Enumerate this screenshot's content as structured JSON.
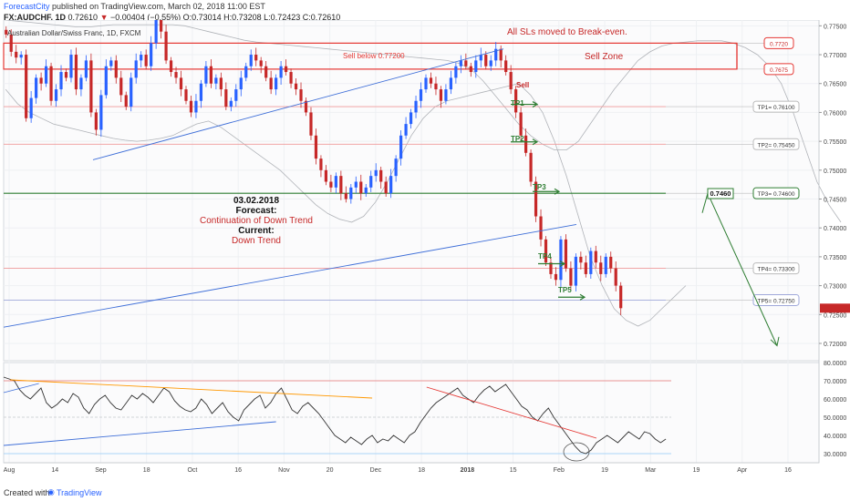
{
  "header": {
    "publisher": "ForecastCity",
    "published_text": "published on TradingView.com, March 02, 2018 11:00 EST",
    "symbol": "FX:AUDCHF, 1D",
    "last": "0.72610",
    "change": "−0.00404 (−0.55%)",
    "ohlc": "O:0.73014 H:0.73208 L:0.72423 C:0.72610",
    "instrument": "Australian Dollar/Swiss Franc, 1D, FXCM"
  },
  "footer": {
    "created_with": "Created with",
    "brand": "TradingView"
  },
  "annotations": {
    "sl_note": "All SLs moved to Break-even.",
    "sell_below": "Sell below 0.77200",
    "sell_zone": "Sell Zone",
    "sell": "Sell",
    "forecast_date": "03.02.2018",
    "forecast_label": "Forecast:",
    "forecast_value": "Continuation of Down Trend",
    "current_label": "Current:",
    "current_value": "Down Trend",
    "tp_arrows": [
      "TP1",
      "TP2",
      "TP3",
      "TP4",
      "TP5"
    ],
    "marker_7460": "0.7460"
  },
  "chart_data": [
    {
      "type": "candlestick",
      "ylim": [
        0.717,
        0.776
      ],
      "yticks": [
        "0.77500",
        "0.77000",
        "0.76500",
        "0.76000",
        "0.75500",
        "0.75000",
        "0.74500",
        "0.74000",
        "0.73500",
        "0.73000",
        "0.72500",
        "0.72000"
      ],
      "xticks": [
        "Aug",
        "14",
        "Sep",
        "18",
        "Oct",
        "16",
        "Nov",
        "20",
        "Dec",
        "18",
        "2018",
        "15",
        "Feb",
        "19",
        "Mar",
        "19",
        "Apr",
        "16"
      ],
      "levels": [
        {
          "label": "0.7720",
          "value": 0.772,
          "color": "#e53935"
        },
        {
          "label": "0.7675",
          "value": 0.7675,
          "color": "#e53935"
        },
        {
          "label": "TP1= 0.76100",
          "value": 0.761,
          "color": "#ef9a9a"
        },
        {
          "label": "TP2= 0.75450",
          "value": 0.7545,
          "color": "#ef9a9a"
        },
        {
          "label": "TP3= 0.74600",
          "value": 0.746,
          "color": "#2e7d32"
        },
        {
          "label": "TP4= 0.73300",
          "value": 0.733,
          "color": "#ef9a9a"
        },
        {
          "label": "TP5= 0.72750",
          "value": 0.7275,
          "color": "#9fa8da"
        }
      ],
      "up_color": "#2962ff",
      "down_color": "#c62828",
      "price_series": [
        0.7735,
        0.7705,
        0.7695,
        0.77,
        0.759,
        0.7625,
        0.766,
        0.765,
        0.768,
        0.762,
        0.764,
        0.767,
        0.766,
        0.77,
        0.764,
        0.766,
        0.769,
        0.76,
        0.757,
        0.763,
        0.768,
        0.769,
        0.766,
        0.763,
        0.761,
        0.766,
        0.769,
        0.77,
        0.768,
        0.772,
        0.776,
        0.774,
        0.769,
        0.767,
        0.766,
        0.764,
        0.762,
        0.76,
        0.762,
        0.765,
        0.768,
        0.765,
        0.766,
        0.764,
        0.761,
        0.762,
        0.764,
        0.766,
        0.768,
        0.77,
        0.769,
        0.768,
        0.766,
        0.764,
        0.766,
        0.768,
        0.767,
        0.765,
        0.764,
        0.762,
        0.76,
        0.756,
        0.752,
        0.75,
        0.748,
        0.747,
        0.749,
        0.746,
        0.745,
        0.747,
        0.748,
        0.746,
        0.747,
        0.749,
        0.75,
        0.748,
        0.746,
        0.749,
        0.752,
        0.756,
        0.758,
        0.76,
        0.762,
        0.764,
        0.766,
        0.765,
        0.764,
        0.762,
        0.764,
        0.766,
        0.768,
        0.769,
        0.768,
        0.767,
        0.769,
        0.77,
        0.768,
        0.769,
        0.771,
        0.769,
        0.767,
        0.764,
        0.76,
        0.756,
        0.753,
        0.748,
        0.742,
        0.738,
        0.734,
        0.732,
        0.731,
        0.738,
        0.733,
        0.73,
        0.735,
        0.734,
        0.732,
        0.736,
        0.734,
        0.732,
        0.735,
        0.733,
        0.73,
        0.7261
      ],
      "bollinger_upper": [
        0.776,
        0.7758,
        0.7756,
        0.7754,
        0.7752,
        0.775,
        0.7748,
        0.7748,
        0.775,
        0.7752,
        0.7752,
        0.7752,
        0.7752,
        0.7752,
        0.7752,
        0.775,
        0.7745,
        0.774,
        0.7735,
        0.773,
        0.7725,
        0.7722,
        0.772,
        0.7718,
        0.7716,
        0.7714,
        0.7712,
        0.771,
        0.7708,
        0.7706,
        0.7704,
        0.7702,
        0.77,
        0.7698,
        0.7696,
        0.7694,
        0.7692,
        0.769,
        0.7685,
        0.7675,
        0.7655,
        0.763,
        0.7605,
        0.758,
        0.756,
        0.7545,
        0.7535,
        0.7535,
        0.755,
        0.758,
        0.761,
        0.764,
        0.7665,
        0.769,
        0.7705,
        0.7715,
        0.772,
        0.7722,
        0.7724,
        0.7724,
        0.7724,
        0.772,
        0.7712,
        0.77,
        0.768,
        0.765,
        0.76,
        0.754,
        0.748,
        0.744,
        0.741
      ],
      "bollinger_lower": [
        0.764,
        0.7615,
        0.76,
        0.759,
        0.758,
        0.7575,
        0.757,
        0.7565,
        0.756,
        0.7555,
        0.7552,
        0.755,
        0.7552,
        0.7555,
        0.756,
        0.757,
        0.758,
        0.7585,
        0.7575,
        0.756,
        0.7545,
        0.753,
        0.7515,
        0.75,
        0.748,
        0.746,
        0.744,
        0.7425,
        0.7415,
        0.741,
        0.742,
        0.7445,
        0.748,
        0.752,
        0.756,
        0.759,
        0.761,
        0.762,
        0.7625,
        0.763,
        0.7635,
        0.764,
        0.7645,
        0.765,
        0.763,
        0.76,
        0.755,
        0.749,
        0.742,
        0.735,
        0.73,
        0.726,
        0.724,
        0.723,
        0.724,
        0.726,
        0.728,
        0.73
      ],
      "trendlines": [
        {
          "color": "#3f6fd8",
          "points": [
            [
              0.756,
              0.7525
            ],
            [
              0.7719,
              0.771
            ]
          ]
        },
        {
          "color": "#3f6fd8",
          "points": [
            [
              0.7229,
              0.7387
            ],
            [
              0.7396,
              0.7411
            ]
          ]
        },
        {
          "color": "#2e7d32",
          "points": [
            [
              0.744,
              0.7463
            ],
            [
              0.7452,
              0.7196
            ]
          ]
        }
      ]
    },
    {
      "type": "line",
      "name": "RSI",
      "ylim": [
        25,
        80
      ],
      "yticks": [
        "80.0000",
        "70.0000",
        "60.0000",
        "50.0000",
        "40.0000",
        "30.0000"
      ],
      "levels": [
        70,
        50,
        30
      ],
      "values": [
        72,
        71,
        70,
        65,
        62,
        60,
        63,
        66,
        58,
        55,
        57,
        60,
        58,
        63,
        61,
        55,
        52,
        57,
        60,
        62,
        58,
        55,
        54,
        58,
        62,
        60,
        63,
        61,
        58,
        62,
        66,
        64,
        59,
        56,
        54,
        53,
        55,
        60,
        57,
        52,
        55,
        58,
        53,
        50,
        48,
        54,
        57,
        60,
        62,
        55,
        58,
        63,
        66,
        60,
        54,
        52,
        56,
        58,
        55,
        52,
        48,
        44,
        40,
        38,
        36,
        39,
        37,
        35,
        38,
        40,
        36,
        38,
        37,
        40,
        38,
        36,
        40,
        42,
        47,
        51,
        55,
        58,
        60,
        62,
        64,
        66,
        62,
        60,
        58,
        62,
        65,
        67,
        64,
        66,
        68,
        64,
        60,
        56,
        54,
        50,
        48,
        52,
        55,
        50,
        46,
        42,
        38,
        34,
        31,
        30,
        32,
        36,
        38,
        40,
        38,
        36,
        39,
        42,
        40,
        38,
        42,
        41,
        38,
        36,
        38
      ],
      "trendlines": [
        {
          "color": "#ff9800",
          "points": [
            [
              2,
              70.5
            ],
            [
              115,
              60.5
            ]
          ]
        },
        {
          "color": "#e53935",
          "points": [
            [
              132,
              66.5
            ],
            [
              185,
              38.5
            ]
          ]
        },
        {
          "color": "#3f6fd8",
          "points": [
            [
              0,
              34.5
            ],
            [
              85,
              47.5
            ]
          ]
        },
        {
          "color": "#3f6fd8",
          "points": [
            [
              0,
              63.5
            ],
            [
              11,
              68.5
            ]
          ]
        }
      ]
    }
  ]
}
